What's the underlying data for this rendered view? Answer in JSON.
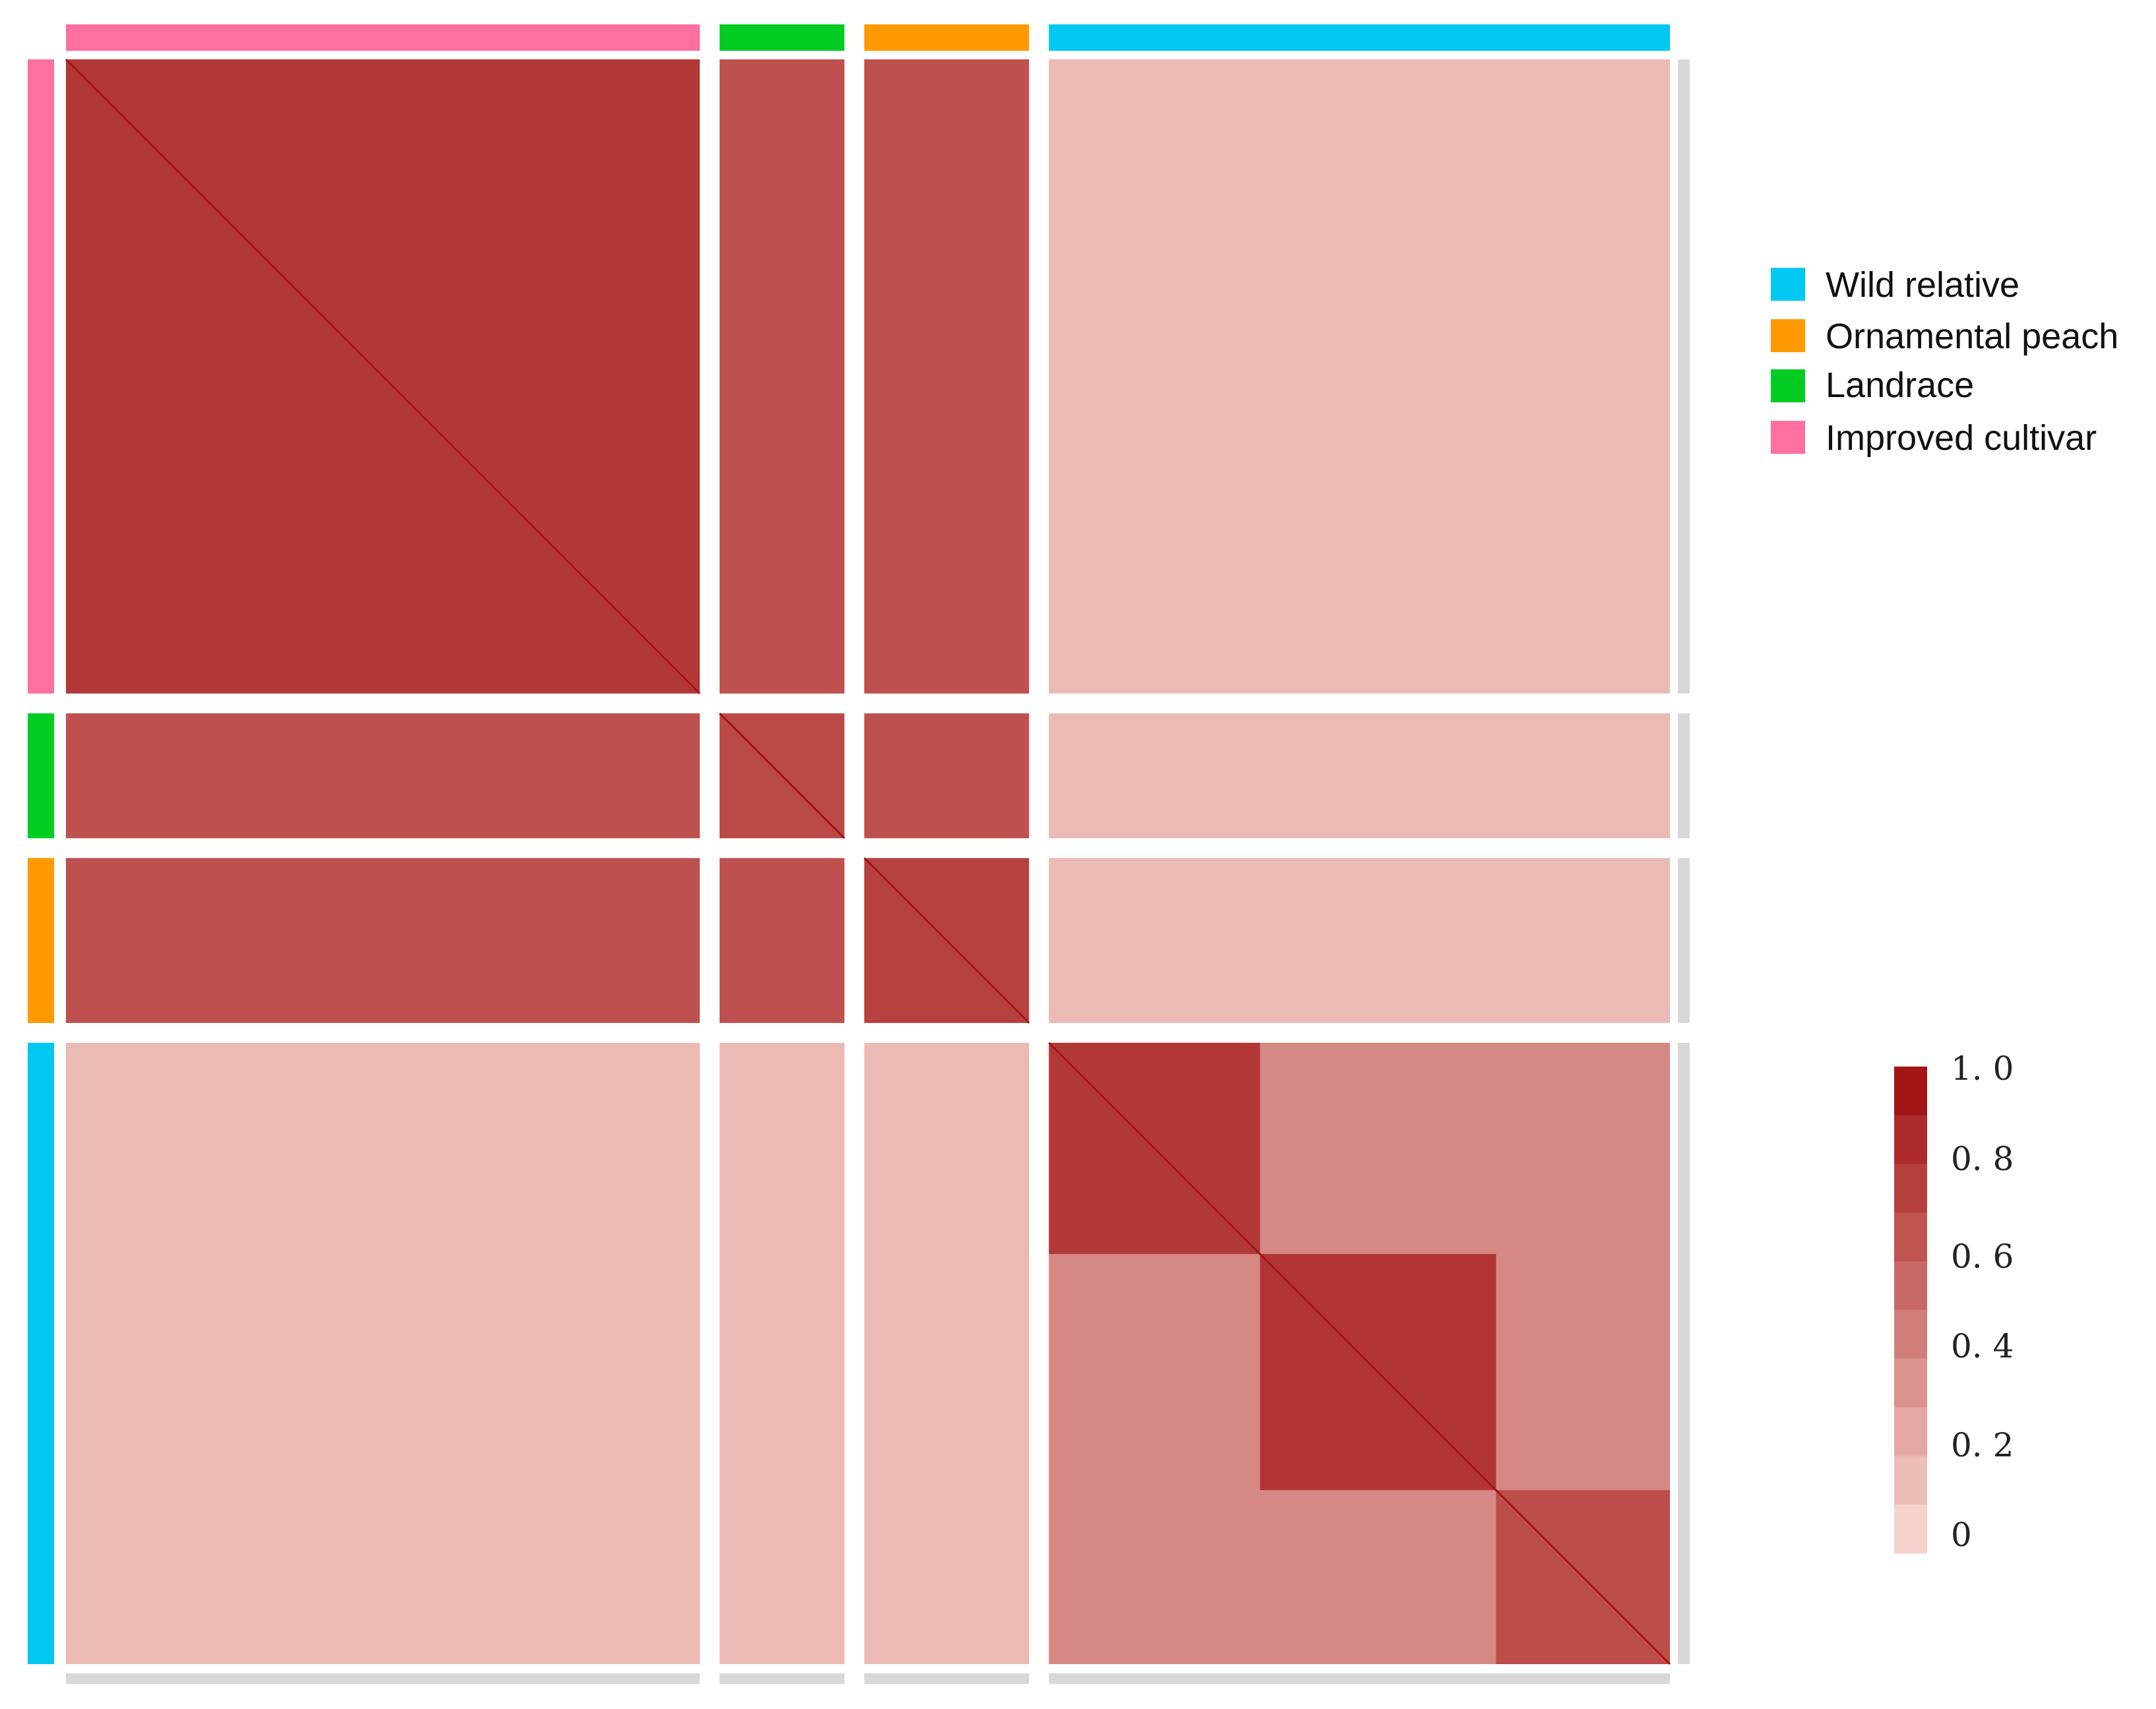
{
  "chart_data": {
    "type": "heatmap",
    "groups": [
      {
        "name": "Improved cultivar",
        "color": "#FF6FA0",
        "span": 0.396,
        "within": 0.78
      },
      {
        "name": "Landrace",
        "color": "#00CC22",
        "span": 0.078,
        "within": 0.7
      },
      {
        "name": "Ornamental peach",
        "color": "#FF9900",
        "span": 0.103,
        "within": 0.74
      },
      {
        "name": "Wild relative",
        "color": "#00C8F0",
        "span": 0.388,
        "within": 0.4
      }
    ],
    "block_values": [
      [
        0.78,
        0.66,
        0.66,
        0.16
      ],
      [
        0.66,
        0.7,
        0.66,
        0.16
      ],
      [
        0.66,
        0.66,
        0.74,
        0.16
      ],
      [
        0.16,
        0.16,
        0.16,
        0.4
      ]
    ],
    "wild_subclusters": [
      {
        "span": 0.34,
        "within": 0.78
      },
      {
        "span": 0.38,
        "within": 0.8
      },
      {
        "span": 0.28,
        "within": 0.68
      }
    ],
    "legend": [
      "Wild relative",
      "Ornamental peach",
      "Landrace",
      "Improved cultivar"
    ],
    "scale": {
      "min": 0,
      "max": 1.0,
      "tick_labels": [
        "1. 0",
        "0. 8",
        "0. 6",
        "0. 4",
        "0. 2",
        "0"
      ],
      "steps": 10,
      "color_low": "#FBDCD6",
      "color_high": "#9E0A0A"
    }
  }
}
